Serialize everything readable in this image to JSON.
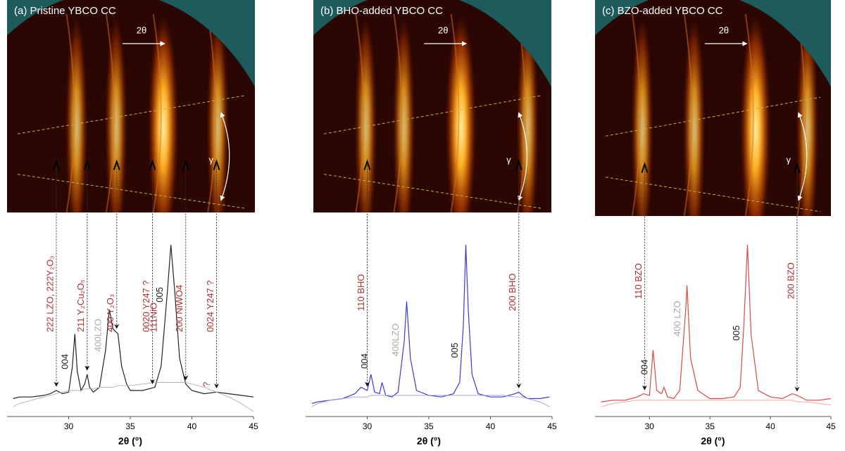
{
  "chart_data": [
    {
      "type": "line",
      "title": "(a) Pristine YBCO CC",
      "arrow_label": "2θ",
      "gamma_label": "γ",
      "xlabel": "2θ (°)",
      "x": [
        25.5,
        26,
        27,
        28,
        28.5,
        29,
        29.5,
        30,
        30.3,
        30.5,
        30.7,
        31,
        31.3,
        31.5,
        31.7,
        32,
        32.5,
        33,
        33.3,
        33.6,
        34,
        34.3,
        34.7,
        35,
        36,
        37,
        37.5,
        38,
        38.3,
        38.6,
        39,
        39.5,
        40,
        41,
        42,
        43,
        44,
        45
      ],
      "series": [
        {
          "color": "#222222",
          "values": [
            5,
            6,
            6,
            7,
            8,
            10,
            8,
            9,
            25,
            45,
            22,
            10,
            14,
            20,
            12,
            9,
            12,
            35,
            60,
            48,
            45,
            25,
            14,
            10,
            10,
            12,
            25,
            70,
            100,
            72,
            30,
            14,
            10,
            8,
            9,
            8,
            7,
            6
          ]
        },
        {
          "color": "#b0b0b0",
          "values": [
            0,
            2,
            4,
            6,
            7,
            8,
            9,
            10,
            10,
            10,
            10,
            10,
            11,
            11,
            11,
            11,
            12,
            12,
            12,
            12,
            13,
            13,
            13,
            13,
            14,
            15,
            15,
            15,
            15,
            15,
            15,
            15,
            14,
            12,
            9,
            6,
            2,
            -3
          ]
        }
      ],
      "xlim": [
        25,
        45
      ],
      "xticks": [
        30,
        35,
        40,
        45
      ],
      "annotations": [
        {
          "text": "222 LZO, 222Y₂O₃",
          "x": 29,
          "color": "#b03030",
          "arrow": true
        },
        {
          "text": "211 Y₂Cu₂O₅",
          "x": 31.5,
          "color": "#b03030",
          "arrow": true
        },
        {
          "text": "400 Y₂O₃",
          "x": 33.9,
          "color": "#b03030",
          "arrow": true
        },
        {
          "text": "0020 Y247 ?",
          "x": 36.8,
          "color": "#b03030",
          "arrow": true
        },
        {
          "text": "111NiO",
          "x": 37.4,
          "color": "#b03030",
          "arrow": false
        },
        {
          "text": "200 NiWO4",
          "x": 39.5,
          "color": "#b03030",
          "arrow": true
        },
        {
          "text": "0024 Y247 ?",
          "x": 42,
          "color": "#b03030",
          "arrow": true
        },
        {
          "text": "004",
          "x": 30.2,
          "color": "#222222",
          "arrow": false
        },
        {
          "text": "400LZO",
          "x": 32.9,
          "color": "#aaaaaa",
          "arrow": false
        },
        {
          "text": "005",
          "x": 37.9,
          "color": "#222222",
          "arrow": false
        },
        {
          "text": "?",
          "x": 41.7,
          "color": "#b03030",
          "arrow": false
        }
      ]
    },
    {
      "type": "line",
      "title": "(b) BHO-added YBCO CC",
      "arrow_label": "2θ",
      "gamma_label": "γ",
      "xlabel": "2θ (°)",
      "x": [
        25.5,
        26,
        27,
        28,
        29,
        29.5,
        30,
        30.3,
        30.6,
        31,
        31.2,
        31.5,
        32,
        32.5,
        33,
        33.2,
        33.5,
        34,
        35,
        36,
        37,
        37.5,
        37.8,
        38,
        38.2,
        38.5,
        39,
        40,
        41,
        42,
        42.3,
        42.6,
        43,
        44,
        44.8
      ],
      "series": [
        {
          "color": "#3a3ad0",
          "values": [
            2,
            3,
            4,
            5,
            8,
            12,
            10,
            20,
            9,
            8,
            15,
            7,
            6,
            9,
            40,
            65,
            30,
            10,
            7,
            6,
            8,
            15,
            50,
            100,
            60,
            20,
            8,
            6,
            6,
            8,
            9,
            7,
            5,
            5,
            6
          ]
        },
        {
          "color": "#9a9ae6",
          "values": [
            0,
            2,
            4,
            5,
            6,
            6,
            6,
            7,
            7,
            7,
            7,
            7,
            7,
            7,
            7,
            7,
            7,
            7,
            7,
            7,
            7,
            7,
            7,
            7,
            7,
            7,
            7,
            7,
            7,
            6,
            6,
            6,
            5,
            3,
            0
          ]
        }
      ],
      "xlim": [
        25,
        45
      ],
      "xticks": [
        30,
        35,
        40,
        45
      ],
      "annotations": [
        {
          "text": "110 BHO",
          "x": 30,
          "color": "#b03030",
          "arrow": true
        },
        {
          "text": "200 BHO",
          "x": 42.3,
          "color": "#b03030",
          "arrow": true
        },
        {
          "text": "004",
          "x": 30.3,
          "color": "#222222",
          "arrow": false
        },
        {
          "text": "400LZO",
          "x": 32.8,
          "color": "#aaaaaa",
          "arrow": false
        },
        {
          "text": "005",
          "x": 37.6,
          "color": "#222222",
          "arrow": false
        }
      ]
    },
    {
      "type": "line",
      "title": "(c) BZO-added YBCO CC",
      "arrow_label": "2θ",
      "gamma_label": "γ",
      "xlabel": "2θ (°)",
      "x": [
        26,
        27,
        28,
        29,
        29.5,
        30,
        30.3,
        30.6,
        31,
        31.2,
        31.5,
        32,
        32.5,
        33,
        33.1,
        33.4,
        34,
        35,
        36,
        37,
        37.5,
        37.8,
        38.1,
        38.4,
        39,
        40,
        41,
        41.8,
        42.2,
        43,
        44,
        45
      ],
      "series": [
        {
          "color": "#d84848",
          "values": [
            3,
            4,
            4,
            6,
            8,
            7,
            35,
            10,
            8,
            12,
            6,
            5,
            10,
            60,
            75,
            30,
            10,
            5,
            5,
            6,
            12,
            50,
            100,
            45,
            10,
            6,
            5,
            8,
            7,
            4,
            4,
            5
          ]
        },
        {
          "color": "#eaa0a0",
          "values": [
            0,
            2,
            3,
            4,
            4,
            4,
            4,
            4,
            4,
            4,
            4,
            4,
            4,
            4,
            4,
            4,
            4,
            4,
            4,
            4,
            4,
            4,
            4,
            4,
            4,
            4,
            4,
            4,
            3,
            3,
            2,
            1
          ]
        }
      ],
      "xlim": [
        25.5,
        45
      ],
      "xticks": [
        30,
        35,
        40,
        45
      ],
      "annotations": [
        {
          "text": "110 BZO",
          "x": 29.6,
          "color": "#b03030",
          "arrow": true
        },
        {
          "text": "200 BZO",
          "x": 42.2,
          "color": "#b03030",
          "arrow": true
        },
        {
          "text": "004",
          "x": 30.1,
          "color": "#222222",
          "arrow": false
        },
        {
          "text": "400 LZO",
          "x": 32.8,
          "color": "#aaaaaa",
          "arrow": false
        },
        {
          "text": "005",
          "x": 37.7,
          "color": "#222222",
          "arrow": false
        }
      ]
    }
  ]
}
